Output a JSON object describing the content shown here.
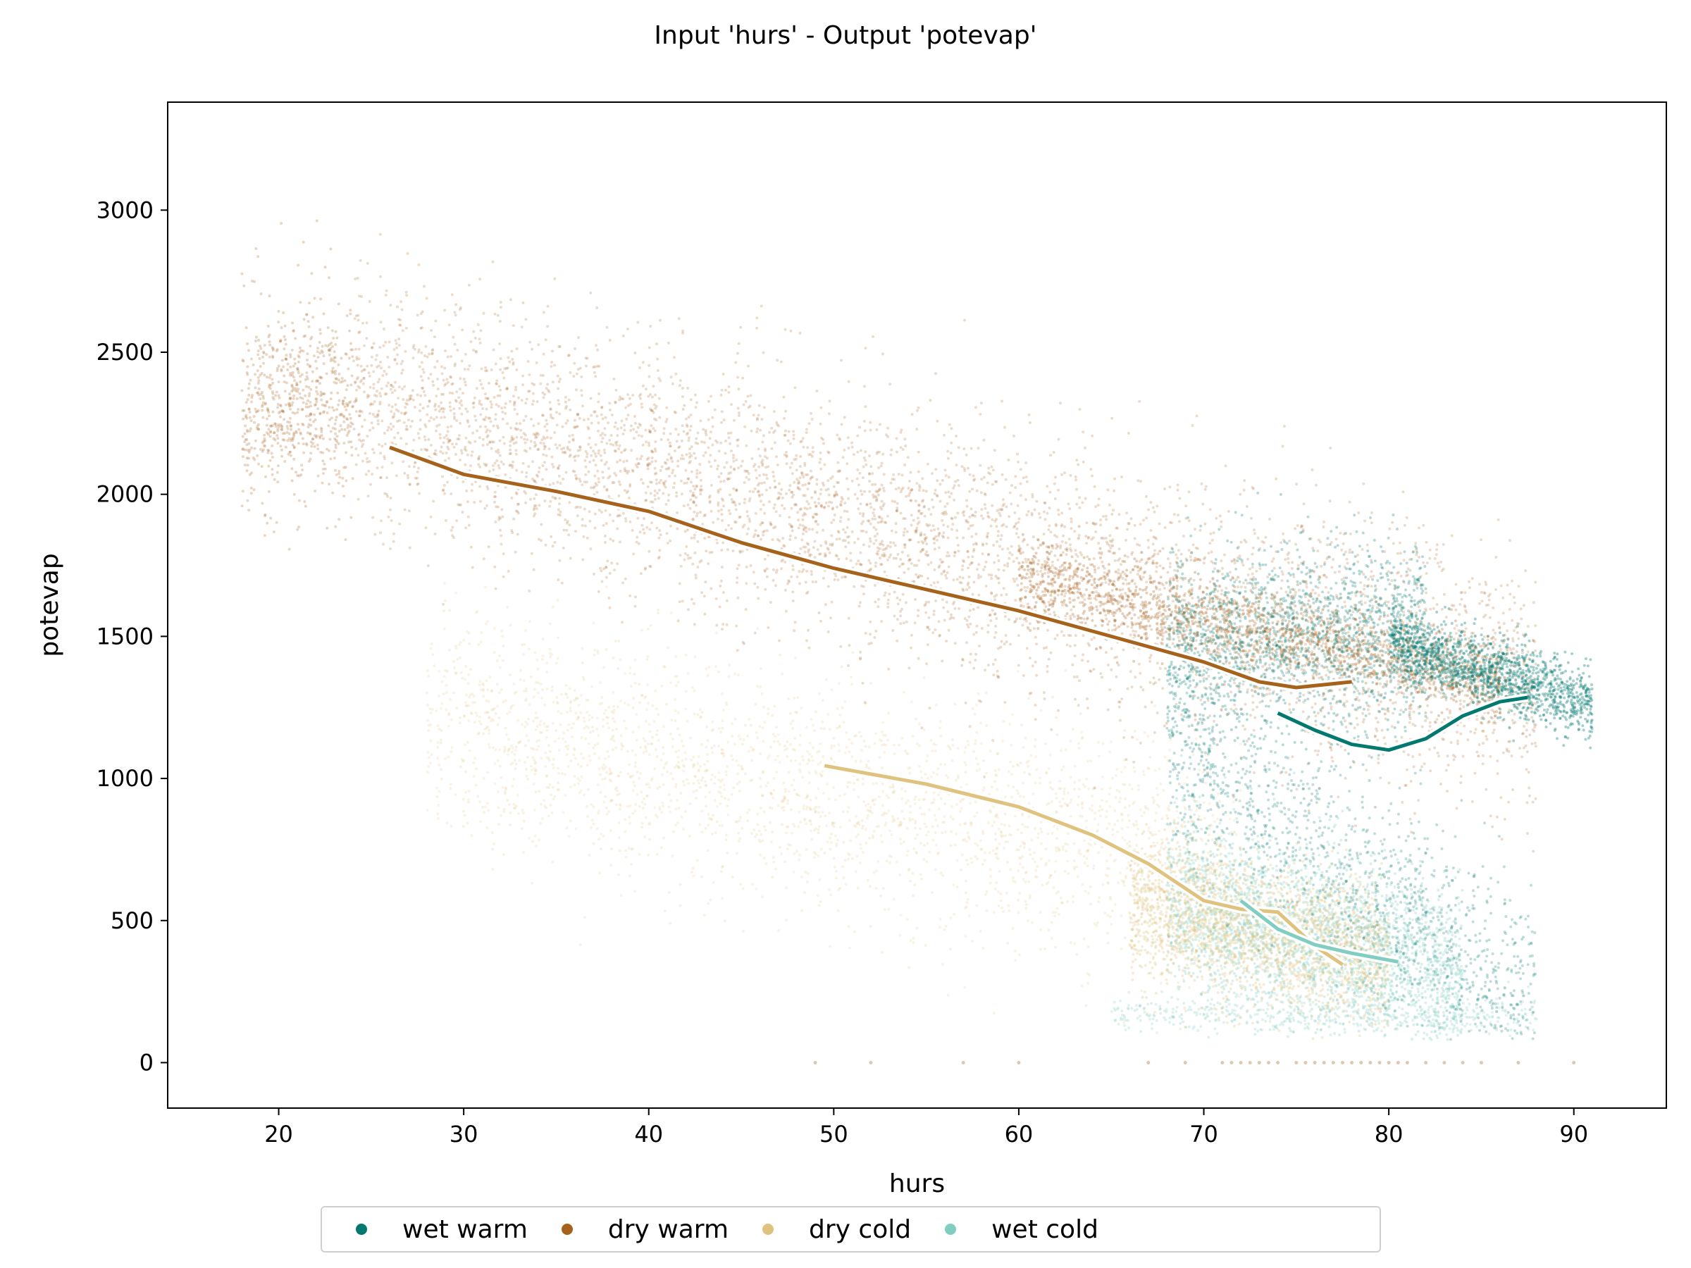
{
  "chart_data": {
    "type": "scatter",
    "title": "Input 'hurs' - Output 'potevap'",
    "xlabel": "hurs",
    "ylabel": "potevap",
    "xlim": [
      14,
      95
    ],
    "ylim": [
      -160,
      3380
    ],
    "xticks": [
      20,
      30,
      40,
      50,
      60,
      70,
      80,
      90
    ],
    "yticks": [
      0,
      500,
      1000,
      1500,
      2000,
      2500,
      3000
    ],
    "grid": false,
    "legend_position": "bottom-center",
    "series": [
      {
        "name": "wet warm",
        "color": "#01796f",
        "cloud": [
          {
            "x": [
              68,
              82
            ],
            "y_at_x0": 1450,
            "slope": 5,
            "spread": 170,
            "n": 1800,
            "alpha": 0.28
          },
          {
            "x": [
              80,
              91
            ],
            "y_at_x0": 1480,
            "slope": -20,
            "spread": 60,
            "n": 1500,
            "alpha": 0.35
          },
          {
            "x": [
              68,
              88
            ],
            "y_at_x0": 1100,
            "slope": -45,
            "spread": 180,
            "n": 1300,
            "alpha": 0.25
          }
        ],
        "trend": [
          [
            74,
            1230
          ],
          [
            76,
            1170
          ],
          [
            78,
            1120
          ],
          [
            80,
            1100
          ],
          [
            82,
            1140
          ],
          [
            84,
            1220
          ],
          [
            86,
            1270
          ],
          [
            87.5,
            1285
          ]
        ]
      },
      {
        "name": "dry warm",
        "color": "#a6611a",
        "cloud": [
          {
            "x": [
              18,
              24
            ],
            "y_at_x0": 2300,
            "slope": 5,
            "spread": 170,
            "n": 700,
            "alpha": 0.25
          },
          {
            "x": [
              24,
              88
            ],
            "y_at_x0": 2350,
            "slope": -16.5,
            "spread": 210,
            "n": 5500,
            "alpha": 0.22
          },
          {
            "x": [
              60,
              86
            ],
            "y_at_x0": 1700,
            "slope": -14,
            "spread": 75,
            "n": 1600,
            "alpha": 0.3
          }
        ],
        "trend": [
          [
            26,
            2165
          ],
          [
            30,
            2070
          ],
          [
            35,
            2010
          ],
          [
            40,
            1940
          ],
          [
            45,
            1830
          ],
          [
            50,
            1740
          ],
          [
            55,
            1665
          ],
          [
            60,
            1590
          ],
          [
            65,
            1500
          ],
          [
            70,
            1410
          ],
          [
            73,
            1340
          ],
          [
            75,
            1320
          ],
          [
            78,
            1340
          ]
        ]
      },
      {
        "name": "dry cold",
        "color": "#dfc27d",
        "cloud": [
          {
            "x": [
              28,
              72
            ],
            "y_at_x0": 1200,
            "slope": -12,
            "spread": 200,
            "n": 2600,
            "alpha": 0.2
          },
          {
            "x": [
              66,
              80
            ],
            "y_at_x0": 560,
            "slope": -14,
            "spread": 120,
            "n": 2200,
            "alpha": 0.3
          }
        ],
        "trend": [
          [
            49.5,
            1045
          ],
          [
            55,
            980
          ],
          [
            60,
            900
          ],
          [
            64,
            800
          ],
          [
            67,
            700
          ],
          [
            70,
            570
          ],
          [
            72,
            540
          ],
          [
            74,
            530
          ],
          [
            76,
            410
          ],
          [
            77.5,
            345
          ]
        ]
      },
      {
        "name": "wet cold",
        "color": "#80cdc1",
        "cloud": [
          {
            "x": [
              68,
              84
            ],
            "y_at_x0": 580,
            "slope": -18,
            "spread": 150,
            "n": 2700,
            "alpha": 0.3
          },
          {
            "x": [
              65,
              88
            ],
            "y_at_x0": 170,
            "slope": 0,
            "spread": 35,
            "n": 500,
            "alpha": 0.25
          }
        ],
        "trend": [
          [
            72,
            570
          ],
          [
            74,
            470
          ],
          [
            76,
            415
          ],
          [
            78,
            385
          ],
          [
            80.5,
            355
          ]
        ]
      }
    ],
    "zero_points": {
      "x": [
        49,
        52,
        57,
        60,
        67,
        69,
        71,
        71.5,
        72,
        72.5,
        73,
        73.5,
        74,
        75,
        75.5,
        76,
        76.5,
        77,
        77.5,
        78,
        78.5,
        79,
        79.5,
        80,
        80.5,
        81,
        82,
        83,
        84,
        85,
        87,
        90
      ],
      "y": 0
    }
  }
}
